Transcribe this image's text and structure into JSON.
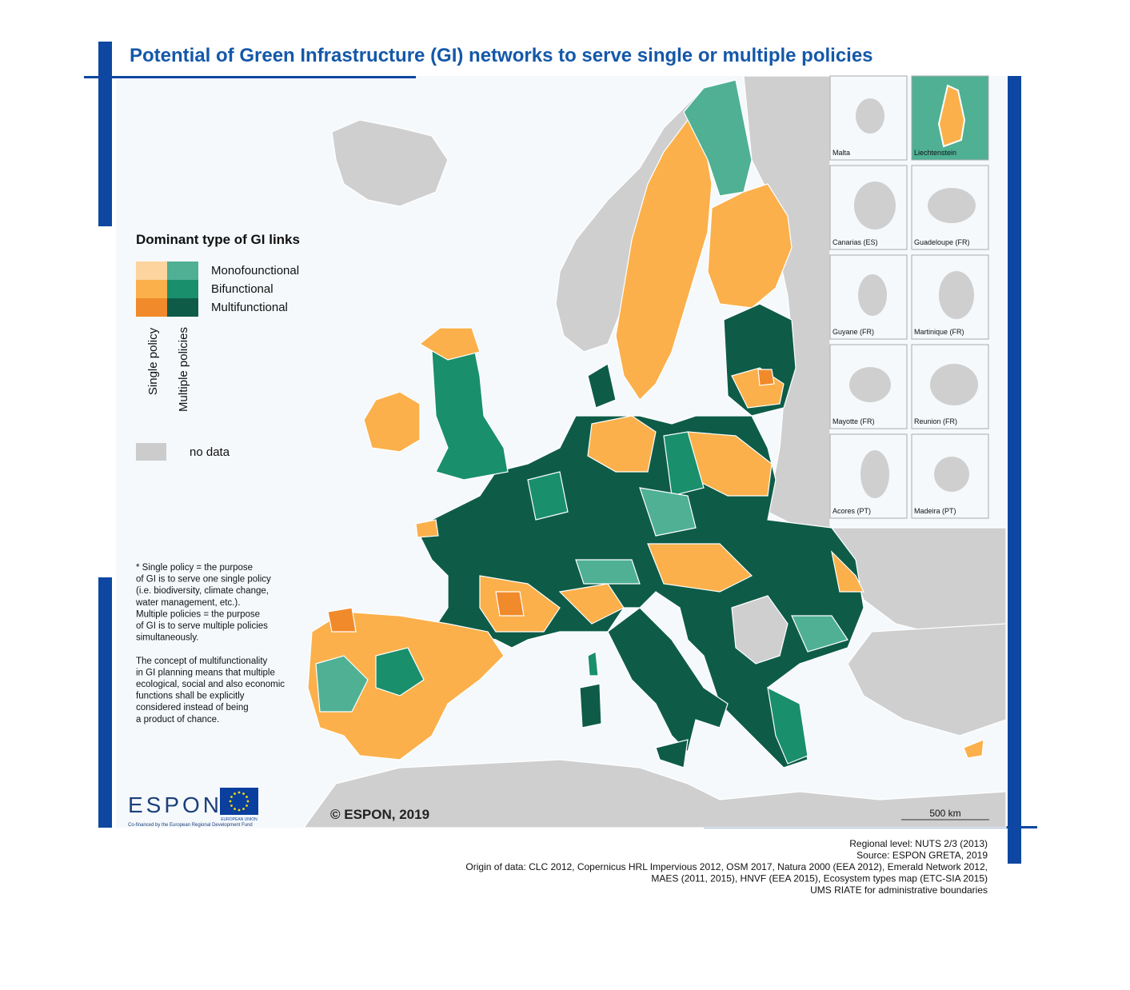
{
  "title": "Potential of Green Infrastructure (GI) networks to serve single or multiple policies",
  "legend": {
    "title": "Dominant type of GI links",
    "items": [
      {
        "label": "Monofounctional",
        "single_color": "#fdd49e",
        "multiple_color": "#4fb094"
      },
      {
        "label": "Bifunctional",
        "single_color": "#fbb04b",
        "multiple_color": "#1a8f6c"
      },
      {
        "label": "Multifunctional",
        "single_color": "#f08a2a",
        "multiple_color": "#0e5c48"
      }
    ],
    "single_label": "Single policy",
    "multiple_label": "Multiple policies",
    "no_data_label": "no data",
    "no_data_color": "#cccccc"
  },
  "notes": [
    "* Single policy = the purpose",
    "of GI is to serve one single policy",
    "(i.e. biodiversity, climate change,",
    "water management, etc.).",
    "Multiple policies = the purpose",
    "of GI is to serve multiple policies",
    "simultaneously.",
    "",
    "The concept of multifunctionality",
    "in GI planning means that multiple",
    "ecological, social and also economic",
    "functions shall be explicitly",
    "considered instead of being",
    "a product of chance."
  ],
  "insets": [
    "Malta",
    "Liechtenstein",
    "Canarias (ES)",
    "Guadeloupe (FR)",
    "Guyane (FR)",
    "Martinique (FR)",
    "Mayotte (FR)",
    "Reunion (FR)",
    "Acores (PT)",
    "Madeira (PT)"
  ],
  "copyright": "© ESPON, 2019",
  "scale_label": "500 km",
  "logo": {
    "espon": "ESPON",
    "eu": "EUROPEAN UNION",
    "cofinanced": "Co-financed by the European Regional Development Fund"
  },
  "footer": [
    "Regional level: NUTS 2/3 (2013)",
    "Source: ESPON GRETA, 2019",
    "Origin of data: CLC 2012, Copernicus HRL Impervious 2012, OSM 2017, Natura 2000 (EEA 2012), Emerald Network 2012,",
    "MAES (2011, 2015), HNVF (EEA 2015), Ecosystem types map (ETC-SIA 2015)",
    "UMS RIATE for administrative boundaries"
  ]
}
